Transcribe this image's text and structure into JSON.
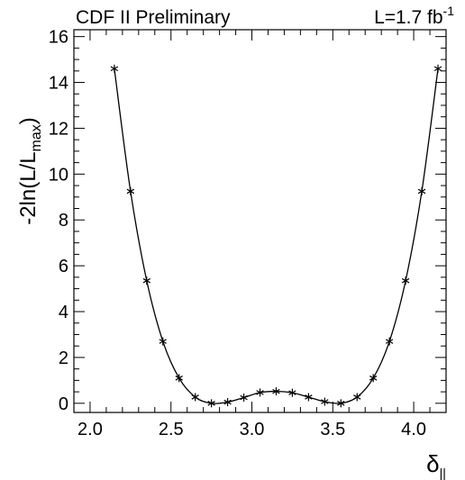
{
  "header": {
    "left_label": "CDF II Preliminary",
    "lumi_main": "L=1.7 fb",
    "lumi_sup": "-1"
  },
  "chart_data": {
    "type": "line",
    "marker": "asterisk",
    "ylabel_main": "-2ln(L/L",
    "ylabel_sub": "max",
    "ylabel_close": ")",
    "xlabel_main": "δ",
    "xlabel_sub": "||",
    "xlim": [
      1.9,
      4.2
    ],
    "ylim": [
      -0.4,
      16.3
    ],
    "xticks": [
      2.0,
      2.5,
      3.0,
      3.5,
      4.0
    ],
    "xtick_labels": [
      "2.0",
      "2.5",
      "3.0",
      "3.5",
      "4.0"
    ],
    "yticks": [
      0,
      2,
      4,
      6,
      8,
      10,
      12,
      14,
      16
    ],
    "ytick_labels": [
      "0",
      "2",
      "4",
      "6",
      "8",
      "10",
      "12",
      "14",
      "16"
    ],
    "x": [
      2.15,
      2.25,
      2.35,
      2.45,
      2.55,
      2.65,
      2.75,
      2.85,
      2.95,
      3.05,
      3.15,
      3.25,
      3.35,
      3.45,
      3.55,
      3.65,
      3.75,
      3.85,
      3.95,
      4.05,
      4.15
    ],
    "y": [
      14.6,
      9.25,
      5.35,
      2.7,
      1.1,
      0.27,
      0.0,
      0.05,
      0.25,
      0.47,
      0.52,
      0.46,
      0.27,
      0.07,
      0.0,
      0.27,
      1.1,
      2.7,
      5.35,
      9.25,
      14.6
    ]
  }
}
